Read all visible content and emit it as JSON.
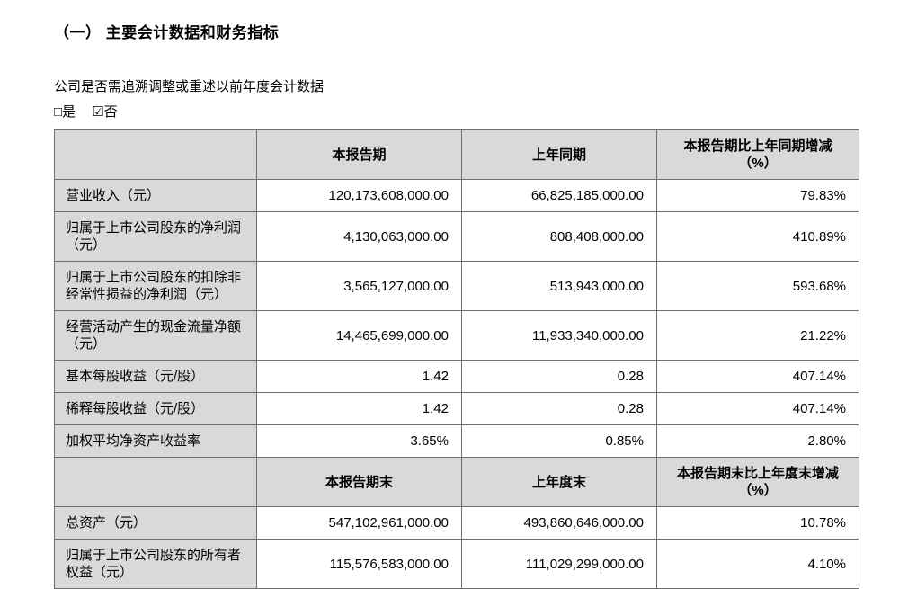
{
  "document": {
    "section_title": "（一）  主要会计数据和财务指标",
    "question_line": "公司是否需追溯调整或重述以前年度会计数据",
    "checkbox_yes": "□是",
    "checkbox_no": "☑否"
  },
  "table": {
    "sections": [
      {
        "header": [
          "",
          "本报告期",
          "上年同期",
          "本报告期比上年同期增减\n（%）"
        ],
        "rows": [
          [
            "营业收入（元）",
            "120,173,608,000.00",
            "66,825,185,000.00",
            "79.83%"
          ],
          [
            "归属于上市公司股东的净利润（元）",
            "4,130,063,000.00",
            "808,408,000.00",
            "410.89%"
          ],
          [
            "归属于上市公司股东的扣除非经常性损益的净利润（元）",
            "3,565,127,000.00",
            "513,943,000.00",
            "593.68%"
          ],
          [
            "经营活动产生的现金流量净额（元）",
            "14,465,699,000.00",
            "11,933,340,000.00",
            "21.22%"
          ],
          [
            "基本每股收益（元/股）",
            "1.42",
            "0.28",
            "407.14%"
          ],
          [
            "稀释每股收益（元/股）",
            "1.42",
            "0.28",
            "407.14%"
          ],
          [
            "加权平均净资产收益率",
            "3.65%",
            "0.85%",
            "2.80%"
          ]
        ]
      },
      {
        "header": [
          "",
          "本报告期末",
          "上年度末",
          "本报告期末比上年度末增减\n（%）"
        ],
        "rows": [
          [
            "总资产（元）",
            "547,102,961,000.00",
            "493,860,646,000.00",
            "10.78%"
          ],
          [
            "归属于上市公司股东的所有者权益（元）",
            "115,576,583,000.00",
            "111,029,299,000.00",
            "4.10%"
          ]
        ]
      }
    ]
  },
  "colors": {
    "shaded_cell": "#d9d9d9",
    "border": "#6e6e6e"
  }
}
